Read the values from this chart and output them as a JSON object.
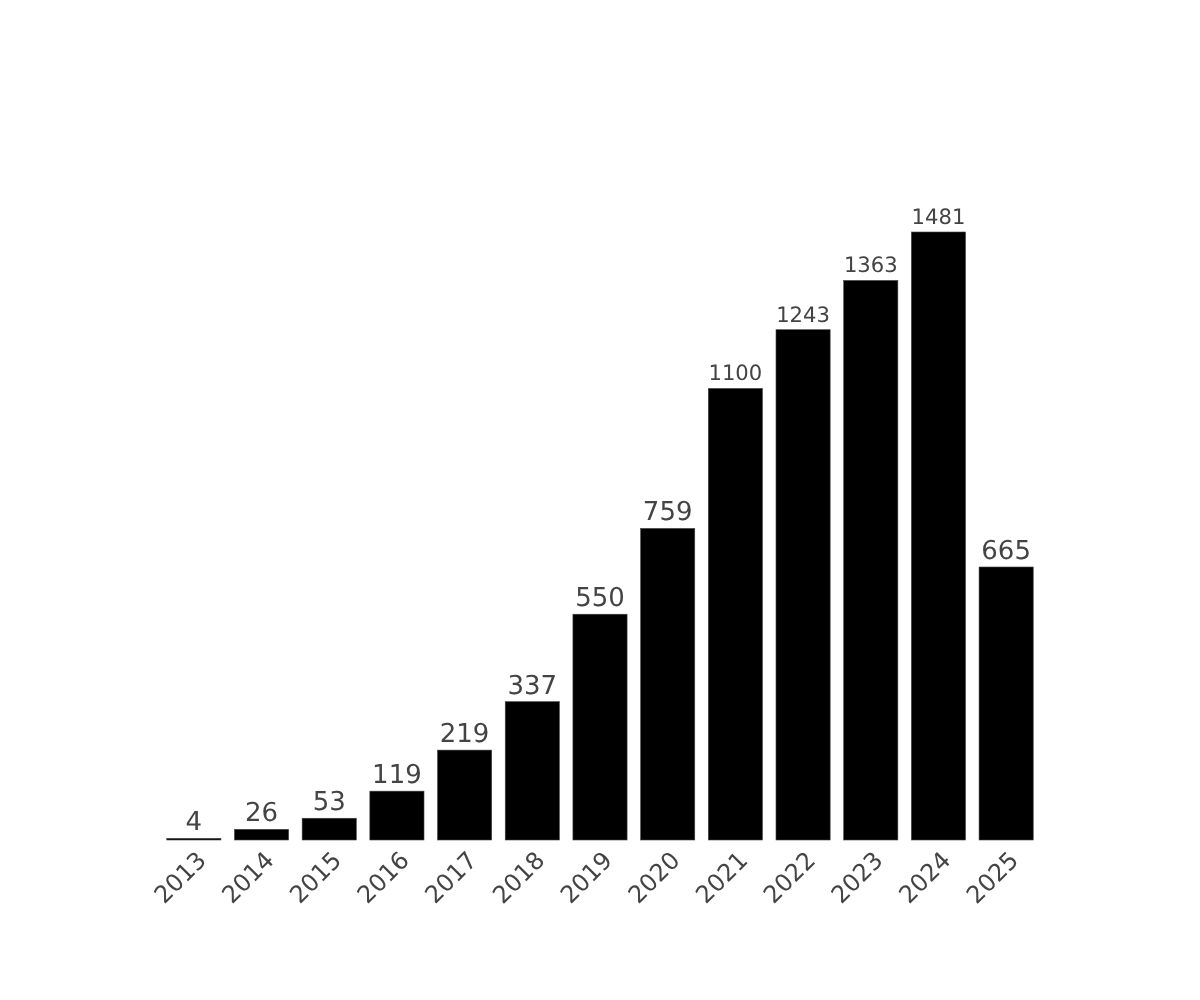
{
  "chart_data": {
    "type": "bar",
    "categories": [
      "2013",
      "2014",
      "2015",
      "2016",
      "2017",
      "2018",
      "2019",
      "2020",
      "2021",
      "2022",
      "2023",
      "2024",
      "2025"
    ],
    "values": [
      4,
      26,
      53,
      119,
      219,
      337,
      550,
      759,
      1100,
      1243,
      1363,
      1481,
      665
    ],
    "color": "#000000",
    "data_labels": true
  }
}
